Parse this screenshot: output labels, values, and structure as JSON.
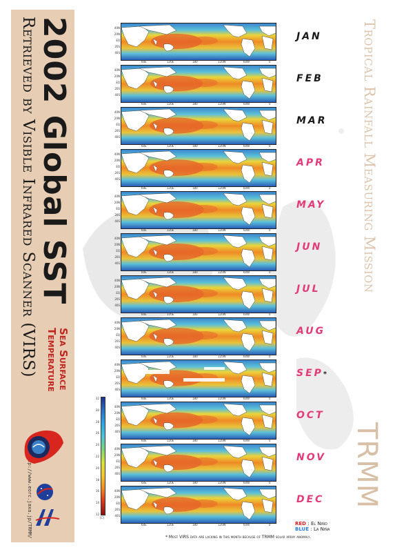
{
  "title": "2002 Global SST",
  "subtitle": "Retrieved by Visible Infrared Scanner (VIRS)",
  "sst_line1": "Sea Surface",
  "sst_line2": "Temperature",
  "url": "http://www.eorc.jaxa.jp/TRMM/",
  "mission_title": "Tropical Rainfall Measuring Mission",
  "mission_acronym": "TRMM",
  "months": [
    {
      "label": "JAN",
      "color": "#1a1a1a"
    },
    {
      "label": "FEB",
      "color": "#1a1a1a"
    },
    {
      "label": "MAR",
      "color": "#1a1a1a"
    },
    {
      "label": "APR",
      "color": "#e23b7a"
    },
    {
      "label": "MAY",
      "color": "#e23b7a"
    },
    {
      "label": "JUN",
      "color": "#e23b7a"
    },
    {
      "label": "JUL",
      "color": "#e23b7a"
    },
    {
      "label": "AUG",
      "color": "#e23b7a"
    },
    {
      "label": "SEP",
      "color": "#e23b7a",
      "note": "*"
    },
    {
      "label": "OCT",
      "color": "#e23b7a"
    },
    {
      "label": "NOV",
      "color": "#e23b7a"
    },
    {
      "label": "DEC",
      "color": "#e23b7a"
    }
  ],
  "lat_ticks": [
    "40N",
    "20N",
    "EQ",
    "20S",
    "40S"
  ],
  "lon_ticks": [
    "60E",
    "120E",
    "180",
    "120W",
    "60W",
    "0"
  ],
  "colorbar": {
    "ticks": [
      "12",
      "14",
      "16",
      "18",
      "20",
      "22",
      "24",
      "26",
      "28",
      "30",
      "32"
    ],
    "unit": "[C]"
  },
  "legend": {
    "red_key": "RED",
    "red_text": ": El Niño",
    "blue_key": "BLUE",
    "blue_text": ": La Niña"
  },
  "footnote": "* Most VIRS data are lacking in this month because of TRMM solar array anomaly.",
  "colors": {
    "band": "#e6cdb4",
    "accent_red": "#c0261f",
    "el_nino": "#e02020",
    "la_nina": "#2b7fd8"
  }
}
